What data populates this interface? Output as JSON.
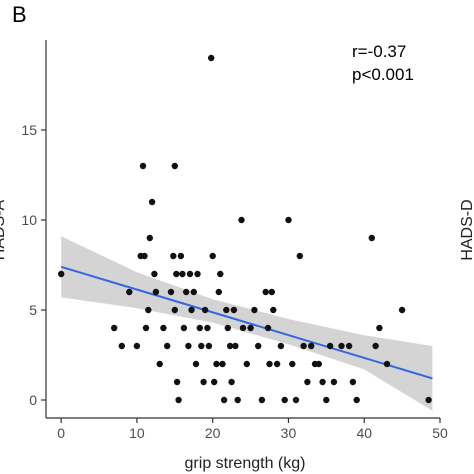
{
  "panel_label": "B",
  "chart_data": {
    "type": "scatter",
    "title": "",
    "xlabel": "grip strength (kg)",
    "ylabel": "HADS-A",
    "right_cut_label": "HADS-D",
    "xlim": [
      -2,
      50
    ],
    "ylim": [
      -1,
      20
    ],
    "x_ticks": [
      0,
      10,
      20,
      30,
      40,
      50
    ],
    "y_ticks": [
      0,
      5,
      10,
      15
    ],
    "grid": false,
    "annotations": [
      "r=-0.37",
      "p<0.001"
    ],
    "colors": {
      "points": "#111111",
      "line": "#3366e0",
      "band": "#cccccc",
      "axis": "#333333"
    },
    "regression": {
      "x": [
        0,
        49
      ],
      "y": [
        7.4,
        1.2
      ]
    },
    "confidence_band": {
      "x": [
        0,
        10,
        20,
        30,
        40,
        49
      ],
      "upper": [
        9.1,
        7.1,
        5.6,
        4.5,
        3.6,
        3.0
      ],
      "lower": [
        5.7,
        5.1,
        4.3,
        3.1,
        1.7,
        -0.6
      ]
    },
    "points": [
      {
        "x": 0,
        "y": 7
      },
      {
        "x": 7,
        "y": 4
      },
      {
        "x": 8,
        "y": 3
      },
      {
        "x": 9,
        "y": 6
      },
      {
        "x": 10,
        "y": 3
      },
      {
        "x": 10.5,
        "y": 8
      },
      {
        "x": 10.8,
        "y": 13
      },
      {
        "x": 11,
        "y": 8
      },
      {
        "x": 11.2,
        "y": 4
      },
      {
        "x": 11.5,
        "y": 5
      },
      {
        "x": 11.7,
        "y": 9
      },
      {
        "x": 12,
        "y": 11
      },
      {
        "x": 12.3,
        "y": 7
      },
      {
        "x": 12.5,
        "y": 6
      },
      {
        "x": 13,
        "y": 2
      },
      {
        "x": 13.5,
        "y": 4
      },
      {
        "x": 14,
        "y": 3
      },
      {
        "x": 14.5,
        "y": 6
      },
      {
        "x": 14.8,
        "y": 8
      },
      {
        "x": 15,
        "y": 13
      },
      {
        "x": 15.2,
        "y": 7
      },
      {
        "x": 15,
        "y": 5
      },
      {
        "x": 15.3,
        "y": 1
      },
      {
        "x": 15.5,
        "y": 0
      },
      {
        "x": 15.8,
        "y": 8
      },
      {
        "x": 16,
        "y": 7
      },
      {
        "x": 16.2,
        "y": 4
      },
      {
        "x": 16.5,
        "y": 6
      },
      {
        "x": 16.8,
        "y": 3
      },
      {
        "x": 17,
        "y": 7
      },
      {
        "x": 17.2,
        "y": 5
      },
      {
        "x": 17.5,
        "y": 6
      },
      {
        "x": 17.8,
        "y": 2
      },
      {
        "x": 18,
        "y": 7
      },
      {
        "x": 18.3,
        "y": 4
      },
      {
        "x": 18.5,
        "y": 3
      },
      {
        "x": 18.8,
        "y": 1
      },
      {
        "x": 19,
        "y": 5
      },
      {
        "x": 19.3,
        "y": 4
      },
      {
        "x": 19.5,
        "y": 3
      },
      {
        "x": 19.8,
        "y": 19
      },
      {
        "x": 20,
        "y": 8
      },
      {
        "x": 20.2,
        "y": 1
      },
      {
        "x": 20.5,
        "y": 2
      },
      {
        "x": 20.8,
        "y": 6
      },
      {
        "x": 21,
        "y": 7
      },
      {
        "x": 21.3,
        "y": 2
      },
      {
        "x": 21.5,
        "y": 0
      },
      {
        "x": 21.8,
        "y": 5
      },
      {
        "x": 22,
        "y": 4
      },
      {
        "x": 22.3,
        "y": 3
      },
      {
        "x": 22.5,
        "y": 1
      },
      {
        "x": 22.8,
        "y": 5
      },
      {
        "x": 23,
        "y": 3
      },
      {
        "x": 23.3,
        "y": 0
      },
      {
        "x": 23.8,
        "y": 10
      },
      {
        "x": 24,
        "y": 4
      },
      {
        "x": 24.5,
        "y": 2
      },
      {
        "x": 25,
        "y": 4
      },
      {
        "x": 25.5,
        "y": 5
      },
      {
        "x": 26,
        "y": 3
      },
      {
        "x": 26.5,
        "y": 0
      },
      {
        "x": 27,
        "y": 6
      },
      {
        "x": 27.3,
        "y": 4
      },
      {
        "x": 27.5,
        "y": 2
      },
      {
        "x": 27.8,
        "y": 6
      },
      {
        "x": 28,
        "y": 5
      },
      {
        "x": 28.5,
        "y": 2
      },
      {
        "x": 29,
        "y": 3
      },
      {
        "x": 29.5,
        "y": 0
      },
      {
        "x": 30,
        "y": 10
      },
      {
        "x": 30.5,
        "y": 2
      },
      {
        "x": 31,
        "y": 0
      },
      {
        "x": 31.5,
        "y": 8
      },
      {
        "x": 32,
        "y": 3
      },
      {
        "x": 32.5,
        "y": 1
      },
      {
        "x": 33,
        "y": 3
      },
      {
        "x": 33.5,
        "y": 2
      },
      {
        "x": 34,
        "y": 2
      },
      {
        "x": 34.5,
        "y": 1
      },
      {
        "x": 35,
        "y": 0
      },
      {
        "x": 35.5,
        "y": 3
      },
      {
        "x": 36,
        "y": 1
      },
      {
        "x": 37,
        "y": 3
      },
      {
        "x": 38,
        "y": 3
      },
      {
        "x": 38.5,
        "y": 1
      },
      {
        "x": 39,
        "y": 0
      },
      {
        "x": 41,
        "y": 9
      },
      {
        "x": 41.5,
        "y": 3
      },
      {
        "x": 42,
        "y": 4
      },
      {
        "x": 43,
        "y": 2
      },
      {
        "x": 45,
        "y": 5
      },
      {
        "x": 48.5,
        "y": 0
      }
    ]
  }
}
